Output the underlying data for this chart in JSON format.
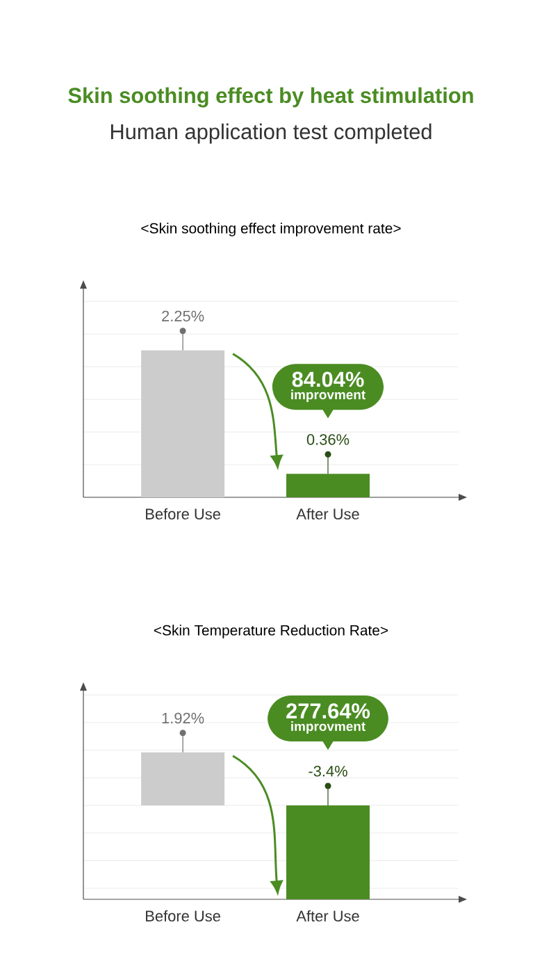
{
  "chart_data": [
    {
      "type": "other",
      "title": "Skin soothing effect by heat stimulation",
      "subtitle": "Human application test completed"
    },
    {
      "type": "bar",
      "title": "<Skin soothing effect improvement rate>",
      "categories": [
        "Before Use",
        "After Use"
      ],
      "values": [
        2.25,
        0.36
      ],
      "colors": [
        "#cccccc",
        "#4a8c22"
      ],
      "value_labels": [
        "2.25%",
        "0.36%"
      ],
      "annotations": [
        "84.04%",
        "improvment"
      ],
      "grid": "y",
      "tick_labels": "x"
    },
    {
      "type": "bar",
      "title": "<Skin Temperature Reduction Rate>",
      "categories": [
        "Before Use",
        "After Use"
      ],
      "values": [
        1.92,
        -3.4
      ],
      "colors": [
        "#cccccc",
        "#4a8c22"
      ],
      "value_labels": [
        "1.92%",
        "-3.4%"
      ],
      "annotations": [
        "277.64%",
        "improvment"
      ],
      "grid": "y",
      "tick_labels": "x"
    }
  ]
}
